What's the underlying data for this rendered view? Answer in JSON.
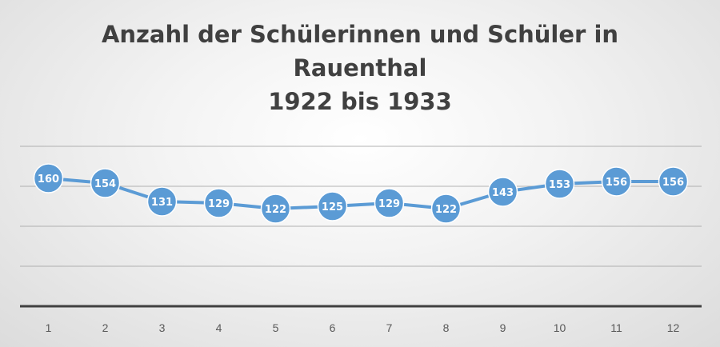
{
  "chart_data": {
    "type": "line",
    "title_lines": [
      "Anzahl der Schülerinnen und Schüler in",
      "Rauenthal",
      "1922 bis 1933"
    ],
    "categories": [
      "1",
      "2",
      "3",
      "4",
      "5",
      "6",
      "7",
      "8",
      "9",
      "10",
      "11",
      "12"
    ],
    "series": [
      {
        "values": [
          160,
          154,
          131,
          129,
          122,
          125,
          129,
          122,
          143,
          153,
          156,
          156
        ],
        "data_labels": [
          "160",
          "154",
          "131",
          "129",
          "122",
          "125",
          "129",
          "122",
          "143",
          "153",
          "156",
          "156"
        ]
      }
    ],
    "ylim": [
      0,
      200
    ],
    "grid": true,
    "y_tick_labels_visible": false,
    "colors": {
      "line": "#5b9bd5",
      "marker": "#5b9bd5",
      "label_text": "#ffffff",
      "grid": "#a6a6a6",
      "axis": "#404040",
      "tick_text": "#595959",
      "title_text": "#404040"
    }
  }
}
